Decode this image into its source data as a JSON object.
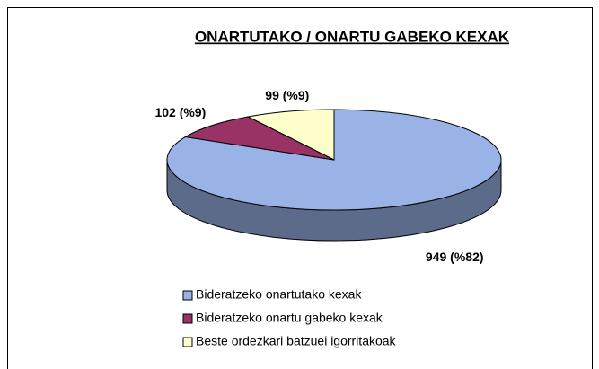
{
  "chart_data": {
    "type": "pie",
    "title": "ONARTUTAKO / ONARTU GABEKO KEXAK",
    "categories": [
      "Bideratzeko onartutako kexak",
      "Bideratzeko onartu gabeko kexak",
      "Beste ordezkari batzuei igorritakoak"
    ],
    "values": [
      949,
      102,
      99
    ],
    "value_labels": [
      "949 (%82)",
      "102 (%9)",
      "99 (%9)"
    ],
    "colors": [
      "#99b3e6",
      "#993366",
      "#ffffcc"
    ]
  }
}
